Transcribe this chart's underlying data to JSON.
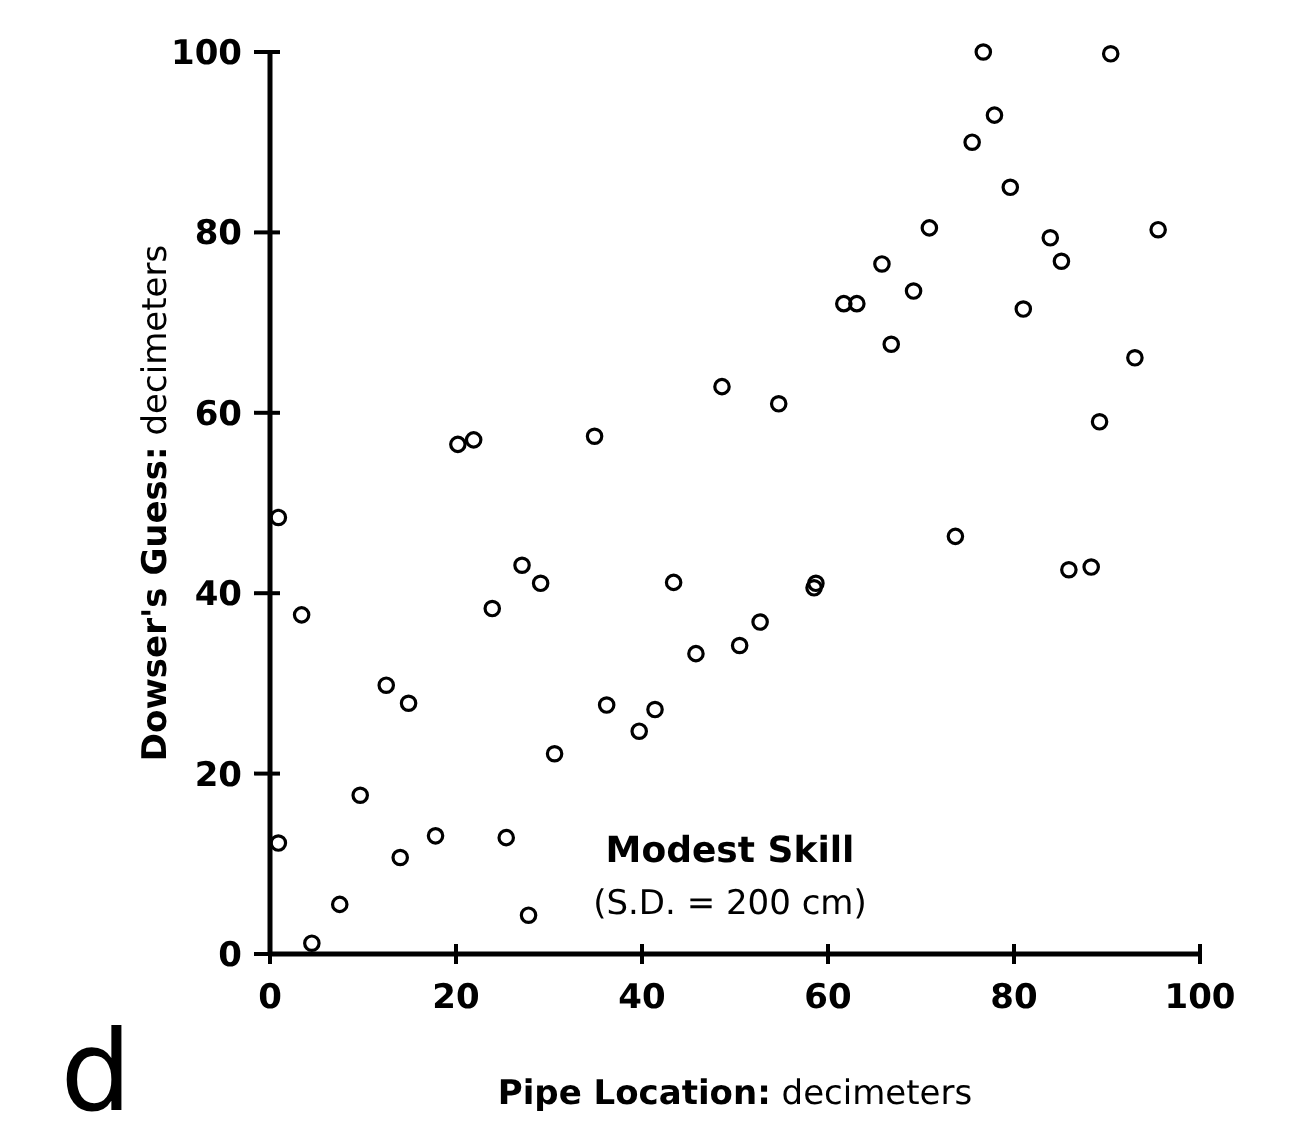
{
  "chart_data": {
    "type": "scatter",
    "xlabel": "Pipe Location: decimeters",
    "ylabel": "Dowser's Guess: decimeters",
    "xlim": [
      0,
      100
    ],
    "ylim": [
      0,
      100
    ],
    "xticks": [
      0,
      20,
      40,
      60,
      80,
      100
    ],
    "yticks": [
      0,
      20,
      40,
      60,
      80,
      100
    ],
    "grid": false,
    "marker": "circle",
    "annotations": [
      "Modest Skill",
      "(S.D. = 200 cm)",
      "d"
    ],
    "series": [
      {
        "color": "#000000",
        "x": [
          20.2,
          21.9,
          34.9,
          48.6,
          76.7,
          90.4,
          77.9,
          75.5,
          79.6,
          70.9,
          83.9,
          95.5,
          85.1,
          65.8,
          69.2,
          61.7,
          63.1,
          81.0,
          66.8,
          93.0,
          54.7,
          89.2,
          0.9,
          3.4,
          23.9,
          27.1,
          29.1,
          43.4,
          12.5,
          14.9,
          36.2,
          39.7,
          41.4,
          30.6,
          45.8,
          50.5,
          52.7,
          9.7,
          0.9,
          14.0,
          17.8,
          25.4,
          7.5,
          27.8,
          4.5,
          58.5,
          58.7,
          73.7,
          85.9,
          88.3
        ],
        "values": [
          56.5,
          57.0,
          57.4,
          62.9,
          100,
          99.8,
          93.0,
          90.0,
          85.0,
          80.5,
          79.4,
          80.3,
          76.8,
          76.5,
          73.5,
          72.1,
          72.1,
          71.5,
          67.6,
          66.1,
          61.0,
          59.0,
          48.4,
          37.6,
          38.3,
          43.1,
          41.1,
          41.2,
          29.8,
          27.8,
          27.6,
          24.7,
          27.1,
          22.2,
          33.3,
          34.2,
          36.8,
          17.6,
          12.3,
          10.7,
          13.1,
          12.9,
          5.5,
          4.3,
          1.2,
          40.6,
          41.1,
          46.3,
          42.6,
          42.9
        ]
      }
    ]
  }
}
